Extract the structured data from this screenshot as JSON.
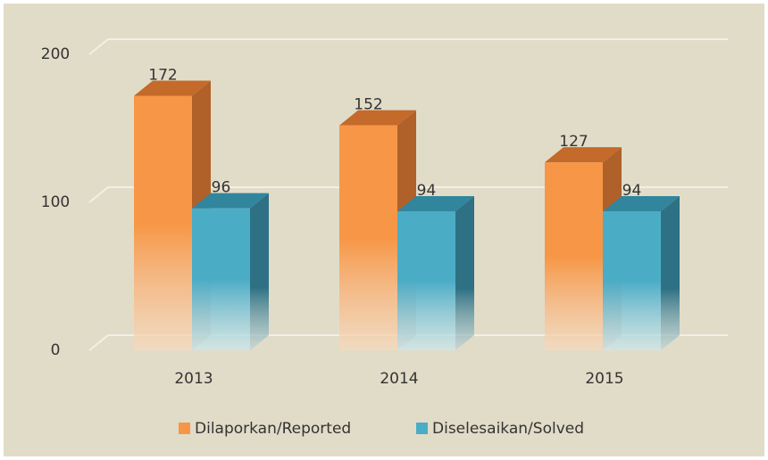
{
  "chart_data": {
    "type": "bar3d",
    "categories": [
      "2013",
      "2014",
      "2015"
    ],
    "series": [
      {
        "name": "Dilaporkan/Reported",
        "color": "#f79646",
        "values": [
          172,
          152,
          127
        ]
      },
      {
        "name": "Diselesaikan/Solved",
        "color": "#4bacc6",
        "values": [
          96,
          94,
          94
        ]
      }
    ],
    "ylim": [
      0,
      200
    ],
    "yticks": [
      0,
      100,
      200
    ],
    "grid": true,
    "legend": "bottom"
  }
}
